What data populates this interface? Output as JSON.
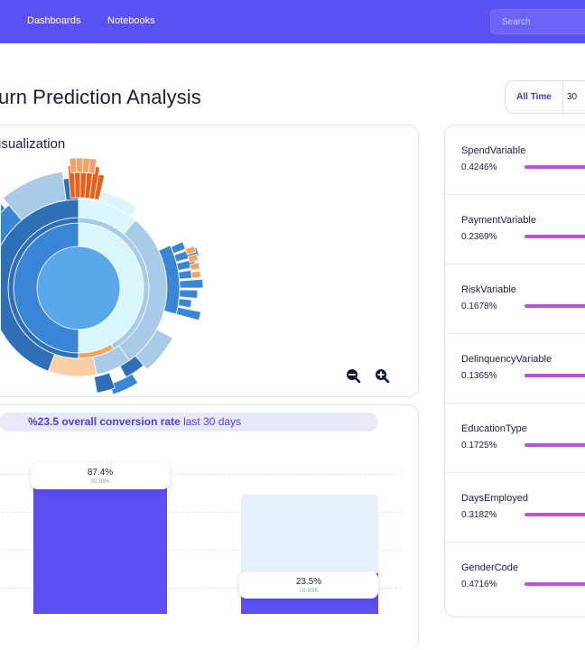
{
  "nav": {
    "items": [
      {
        "label": "Dashboards"
      },
      {
        "label": "Notebooks"
      }
    ],
    "search_placeholder": "Search"
  },
  "page": {
    "title": "urn Prediction Analysis"
  },
  "time_filter": {
    "options": [
      {
        "label": "All Time",
        "selected": true
      },
      {
        "label": "30"
      }
    ]
  },
  "visualization": {
    "title": "isualization",
    "palette": [
      "#3a86d6",
      "#2f6fb6",
      "#a9cbe8",
      "#d8f6fb",
      "#e8611c",
      "#f7a264",
      "#f8cfa6",
      "#5aa8ea"
    ],
    "controls": {
      "zoom_out": "zoom-out-icon",
      "zoom_in": "zoom-in-icon"
    }
  },
  "conversion": {
    "headline": "%23.5 overall conversion rate",
    "period": " last 30 days",
    "bars": [
      {
        "percent": "87.4%",
        "count": "30.89K",
        "value": 87.4
      },
      {
        "percent": "23.5%",
        "count": "10.89K",
        "value": 23.5
      }
    ]
  },
  "variables": [
    {
      "name": "SpendVariable",
      "value": "0.4246%"
    },
    {
      "name": "PaymentVariable",
      "value": "0.2369%"
    },
    {
      "name": "RiskVariable",
      "value": "0.1678%"
    },
    {
      "name": "DelinquencyVariable",
      "value": "0.1365%"
    },
    {
      "name": "EducationType",
      "value": "0.1725%"
    },
    {
      "name": "DaysEmployed",
      "value": "0.3182%"
    },
    {
      "name": "GenderCode",
      "value": "0.4716%"
    }
  ],
  "colors": {
    "brand": "#5a51f3",
    "bar": "#5b4ff2",
    "variable_bar": "#c04fe0",
    "accent_text": "#4a44d8"
  }
}
